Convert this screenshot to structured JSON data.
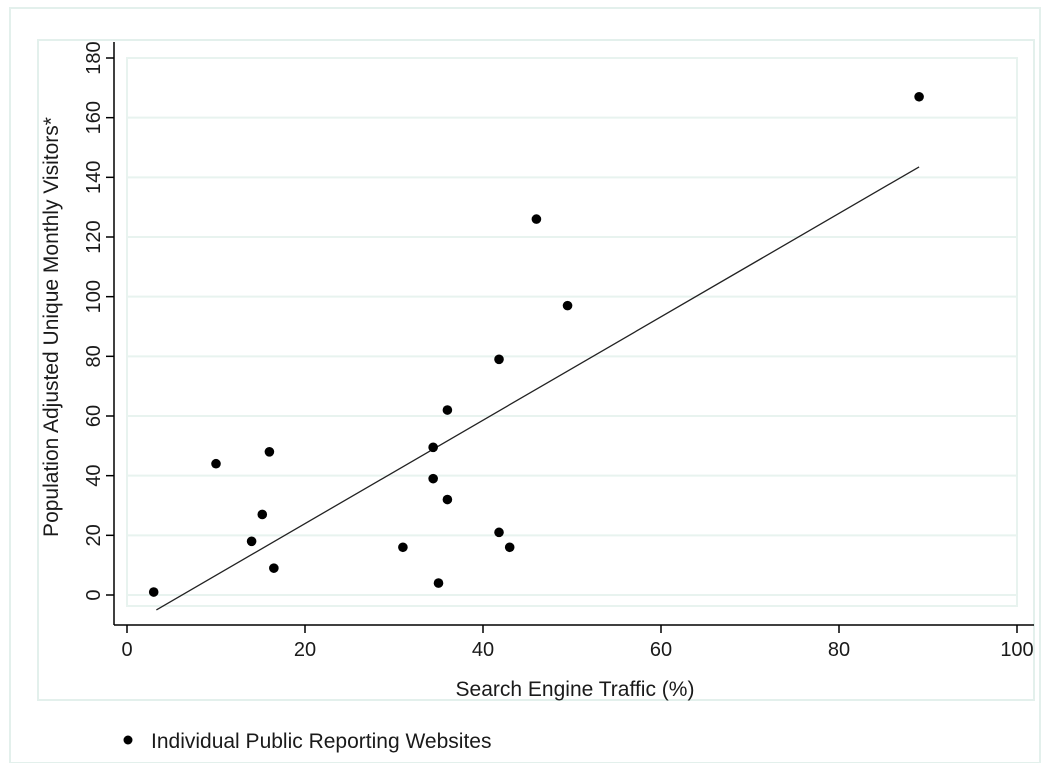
{
  "chart_data": {
    "type": "scatter",
    "xlabel": "Search Engine Traffic (%)",
    "ylabel": "Population Adjusted Unique Monthly Visitors*",
    "xlim": [
      0,
      100
    ],
    "ylim": [
      -10,
      180
    ],
    "x_ticks": [
      0,
      20,
      40,
      60,
      80,
      100
    ],
    "y_ticks": [
      0,
      20,
      40,
      60,
      80,
      100,
      120,
      140,
      160,
      180
    ],
    "x_tick_labels": [
      "0",
      "20",
      "40",
      "60",
      "80",
      "100"
    ],
    "y_tick_labels": [
      "0",
      "20",
      "40",
      "60",
      "80",
      "100",
      "120",
      "140",
      "160",
      "180"
    ],
    "grid": "horizontal",
    "series": [
      {
        "name": "Individual Public Reporting Websites",
        "marker": "filled-circle",
        "color": "#000000",
        "points": [
          {
            "x": 3,
            "y": 1
          },
          {
            "x": 10,
            "y": 44
          },
          {
            "x": 14,
            "y": 18
          },
          {
            "x": 15.2,
            "y": 27
          },
          {
            "x": 16,
            "y": 48
          },
          {
            "x": 16.5,
            "y": 9
          },
          {
            "x": 31,
            "y": 16
          },
          {
            "x": 34.4,
            "y": 49.5
          },
          {
            "x": 34.4,
            "y": 39
          },
          {
            "x": 35,
            "y": 4
          },
          {
            "x": 36,
            "y": 62
          },
          {
            "x": 36,
            "y": 32
          },
          {
            "x": 41.8,
            "y": 79
          },
          {
            "x": 41.8,
            "y": 21
          },
          {
            "x": 43,
            "y": 16
          },
          {
            "x": 46,
            "y": 126
          },
          {
            "x": 49.5,
            "y": 97
          },
          {
            "x": 89,
            "y": 167
          }
        ]
      }
    ],
    "fit_line": {
      "type": "linear",
      "color": "#222222",
      "x": [
        3.3,
        89
      ],
      "y": [
        -5,
        143.5
      ]
    },
    "legend": {
      "placement": "bottom-left",
      "entries": [
        "Individual Public Reporting Websites"
      ]
    },
    "colors": {
      "background": "#ffffff",
      "frame": "#e3f0ec",
      "grid": "#e8f3ef",
      "axis": "#000000",
      "marker": "#000000"
    }
  }
}
